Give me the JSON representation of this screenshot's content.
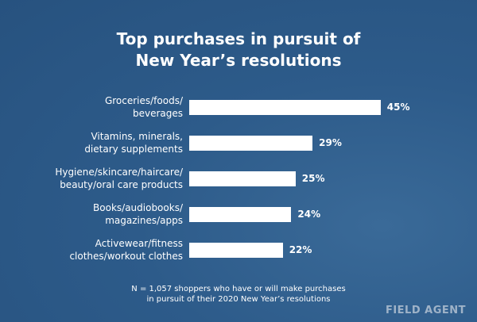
{
  "chart_data": {
    "type": "bar",
    "orientation": "horizontal",
    "title": "Top purchases in pursuit of\nNew Year’s resolutions",
    "categories": [
      "Groceries/foods/\nbeverages",
      "Vitamins, minerals,\ndietary supplements",
      "Hygiene/skincare/haircare/\nbeauty/oral care products",
      "Books/audiobooks/\nmagazines/apps",
      "Activewear/fitness\nclothes/workout clothes"
    ],
    "values": [
      45,
      29,
      25,
      24,
      22
    ],
    "value_labels": [
      "45%",
      "29%",
      "25%",
      "24%",
      "22%"
    ],
    "color": "#ffffff",
    "note": "N = 1,057 shoppers who have or will make purchases\nin pursuit of their 2020 New Year’s resolutions",
    "source": "FIELD AGENT"
  }
}
